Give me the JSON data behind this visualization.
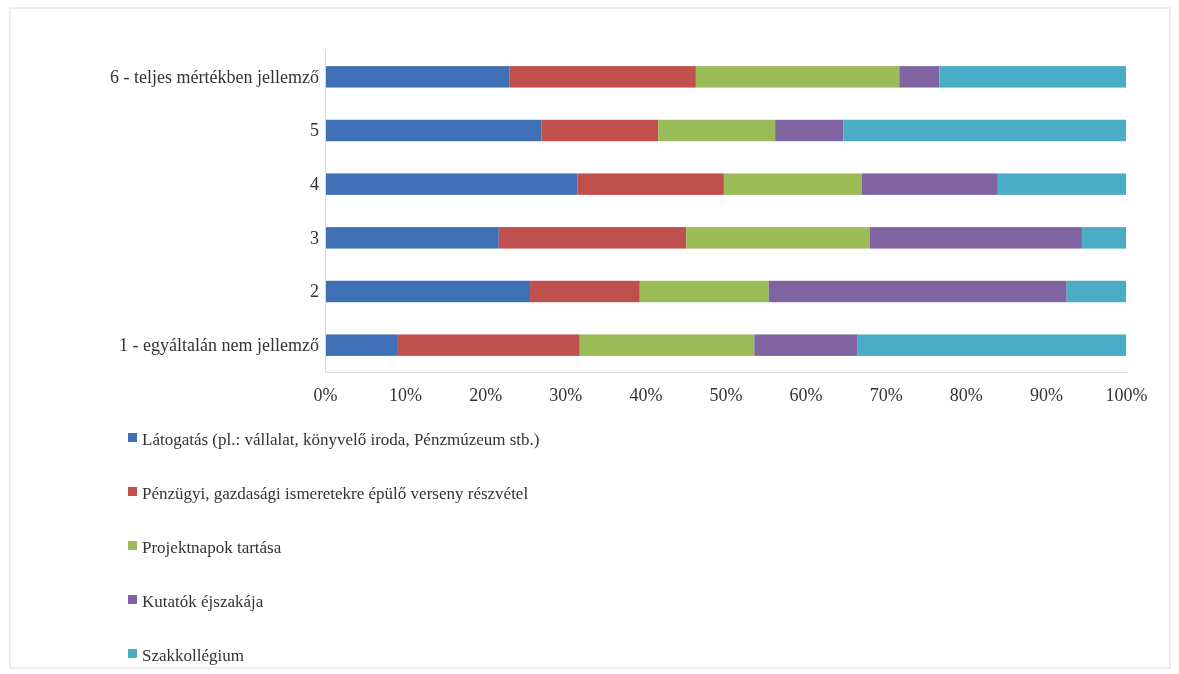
{
  "chart_data": {
    "type": "bar",
    "orientation": "horizontal",
    "stacked": true,
    "categories": [
      "6 - teljes mértékben jellemző",
      "5",
      "4",
      "3",
      "2",
      "1 - egyáltalán nem jellemző"
    ],
    "series": [
      {
        "name": "Látogatás (pl.: vállalat, könyvelő iroda, Pénzmúzeum stb.)",
        "color": "#3f6fb5",
        "values": [
          23,
          27,
          31.5,
          21.7,
          25.6,
          9.1
        ]
      },
      {
        "name": "Pénzügyi, gazdasági ismeretekre épülő verseny részvétel",
        "color": "#c0504d",
        "values": [
          23.3,
          14.6,
          18.3,
          23.4,
          13.7,
          22.7
        ]
      },
      {
        "name": "Projektnapok tartása",
        "color": "#9bbb59",
        "values": [
          25.4,
          14.6,
          17.2,
          22.9,
          16.1,
          21.8
        ]
      },
      {
        "name": "Kutatók éjszakája",
        "color": "#8064a2",
        "values": [
          5,
          8.5,
          17,
          26.5,
          37.2,
          12.9
        ]
      },
      {
        "name": "Szakkollégium",
        "color": "#4bacc6",
        "values": [
          23.3,
          35.3,
          16,
          5.5,
          7.4,
          33.5
        ]
      }
    ],
    "xlim": [
      0,
      100
    ],
    "xticks": [
      {
        "value": 0,
        "label": "0%"
      },
      {
        "value": 10,
        "label": "10%"
      },
      {
        "value": 20,
        "label": "20%"
      },
      {
        "value": 30,
        "label": "30%"
      },
      {
        "value": 40,
        "label": "40%"
      },
      {
        "value": 50,
        "label": "50%"
      },
      {
        "value": 60,
        "label": "60%"
      },
      {
        "value": 70,
        "label": "70%"
      },
      {
        "value": 80,
        "label": "80%"
      },
      {
        "value": 90,
        "label": "90%"
      },
      {
        "value": 100,
        "label": "100%"
      }
    ],
    "legend": "bottom left"
  }
}
